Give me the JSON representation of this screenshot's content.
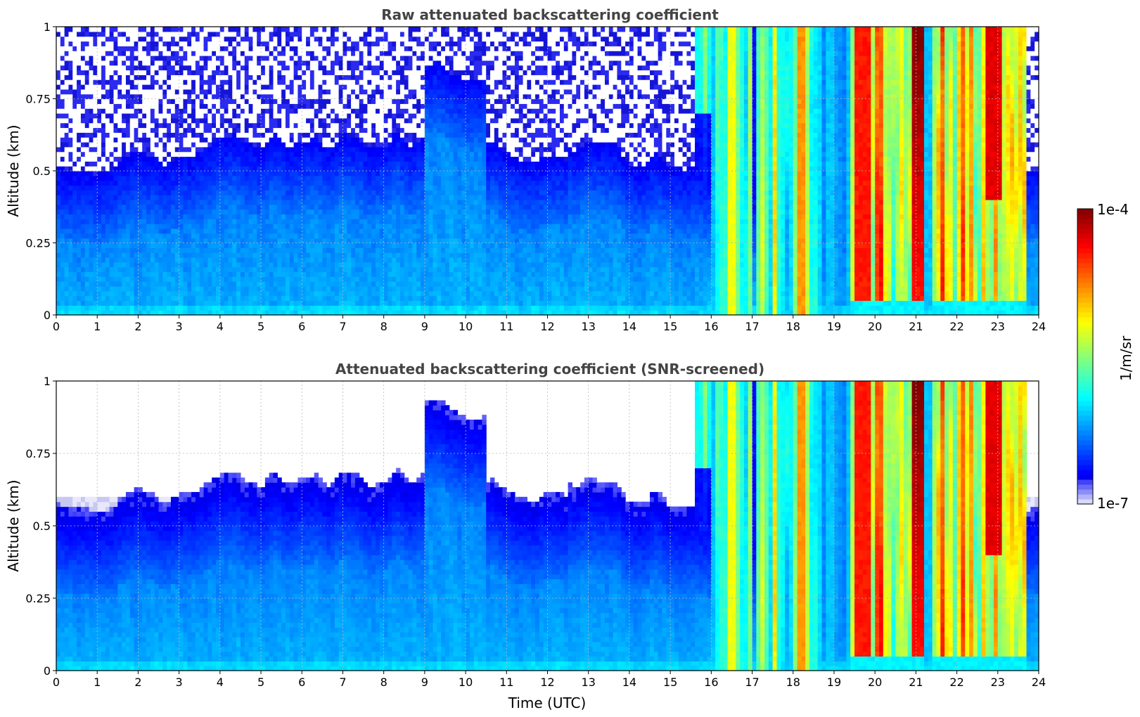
{
  "chart_data": [
    {
      "type": "heatmap",
      "title": "Raw attenuated backscattering coefficient",
      "xlabel": "",
      "ylabel": "Altitude (km)",
      "xlim": [
        0,
        24
      ],
      "ylim": [
        0,
        1
      ],
      "xticks": [
        "0",
        "1",
        "2",
        "3",
        "4",
        "5",
        "6",
        "7",
        "8",
        "9",
        "10",
        "11",
        "12",
        "13",
        "14",
        "15",
        "16",
        "17",
        "18",
        "19",
        "20",
        "21",
        "22",
        "23",
        "24"
      ],
      "yticks": [
        "0",
        "0.25",
        "0.5",
        "0.75",
        "1"
      ],
      "grid": true,
      "screened": false
    },
    {
      "type": "heatmap",
      "title": "Attenuated backscattering coefficient (SNR-screened)",
      "xlabel": "Time (UTC)",
      "ylabel": "Altitude (km)",
      "xlim": [
        0,
        24
      ],
      "ylim": [
        0,
        1
      ],
      "xticks": [
        "0",
        "1",
        "2",
        "3",
        "4",
        "5",
        "6",
        "7",
        "8",
        "9",
        "10",
        "11",
        "12",
        "13",
        "14",
        "15",
        "16",
        "17",
        "18",
        "19",
        "20",
        "21",
        "22",
        "23",
        "24"
      ],
      "yticks": [
        "0",
        "0.25",
        "0.5",
        "0.75",
        "1"
      ],
      "grid": true,
      "screened": true
    }
  ],
  "colorbar": {
    "label": "1/m/sr",
    "min_label": "1e-7",
    "max_label": "1e-4",
    "scale": "log",
    "colormap": "jet"
  }
}
